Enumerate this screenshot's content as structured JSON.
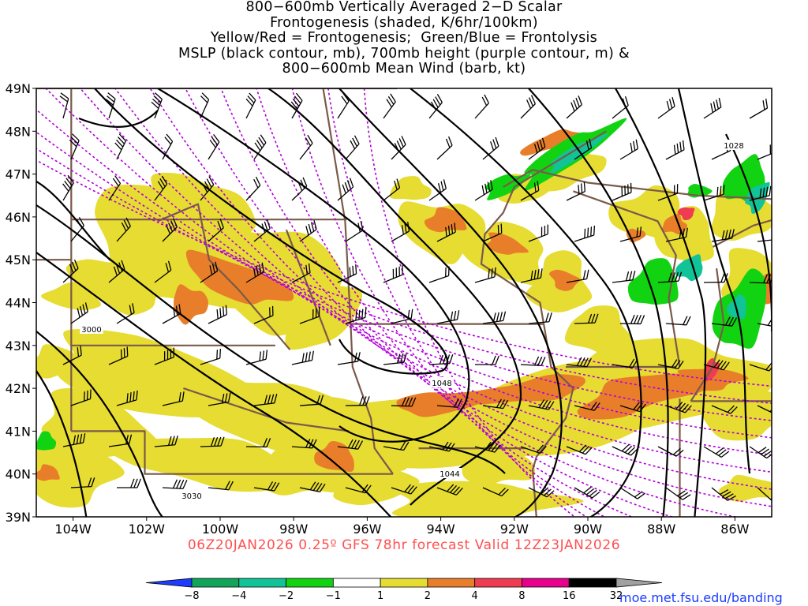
{
  "title_lines": [
    "800−600mb Vertically Averaged 2−D Scalar",
    "Frontogenesis (shaded, K/6hr/100km)",
    "Yellow/Red = Frontogenesis;  Green/Blue = Frontolysis",
    "MSLP (black contour, mb), 700mb height (purple contour, m) &",
    "800−600mb Mean Wind (barb, kt)"
  ],
  "map": {
    "lat_labels": [
      "49N",
      "48N",
      "47N",
      "46N",
      "45N",
      "44N",
      "43N",
      "42N",
      "41N",
      "40N",
      "39N"
    ],
    "lon_labels": [
      "104W",
      "102W",
      "100W",
      "98W",
      "96W",
      "94W",
      "92W",
      "90W",
      "88W",
      "86W"
    ],
    "lat_range": [
      39,
      49
    ],
    "lon_range": [
      -105,
      -85
    ],
    "colors": {
      "frontogenesis_weak": "#e6dc32",
      "frontogenesis_moderate": "#e87e2a",
      "frontogenesis_strong": "#f03c50",
      "frontolysis_weak": "#11d311",
      "frontolysis_moderate": "#11c396",
      "state_borders": "#7a5a4a",
      "mslp_contour": "#000000",
      "height_contour": "#b400dc",
      "wind_barb": "#000000"
    },
    "mslp_labels": [
      "1048",
      "1044",
      "1028"
    ],
    "height_labels": [
      "3000",
      "3030"
    ]
  },
  "colorbar": {
    "labels": [
      "−8",
      "−4",
      "−2",
      "−1",
      "1",
      "2",
      "4",
      "8",
      "16",
      "32"
    ],
    "colors": [
      "#1e3cff",
      "#11a55a",
      "#11c396",
      "#11d311",
      "#ffffff",
      "#e6dc32",
      "#e87e2a",
      "#f03c50",
      "#e6008c",
      "#000000",
      "#a0a0a0"
    ]
  },
  "valid_line": "06Z20JAN2026 0.25º GFS 78hr forecast Valid 12Z23JAN2026",
  "credit": "moe.met.fsu.edu/banding"
}
